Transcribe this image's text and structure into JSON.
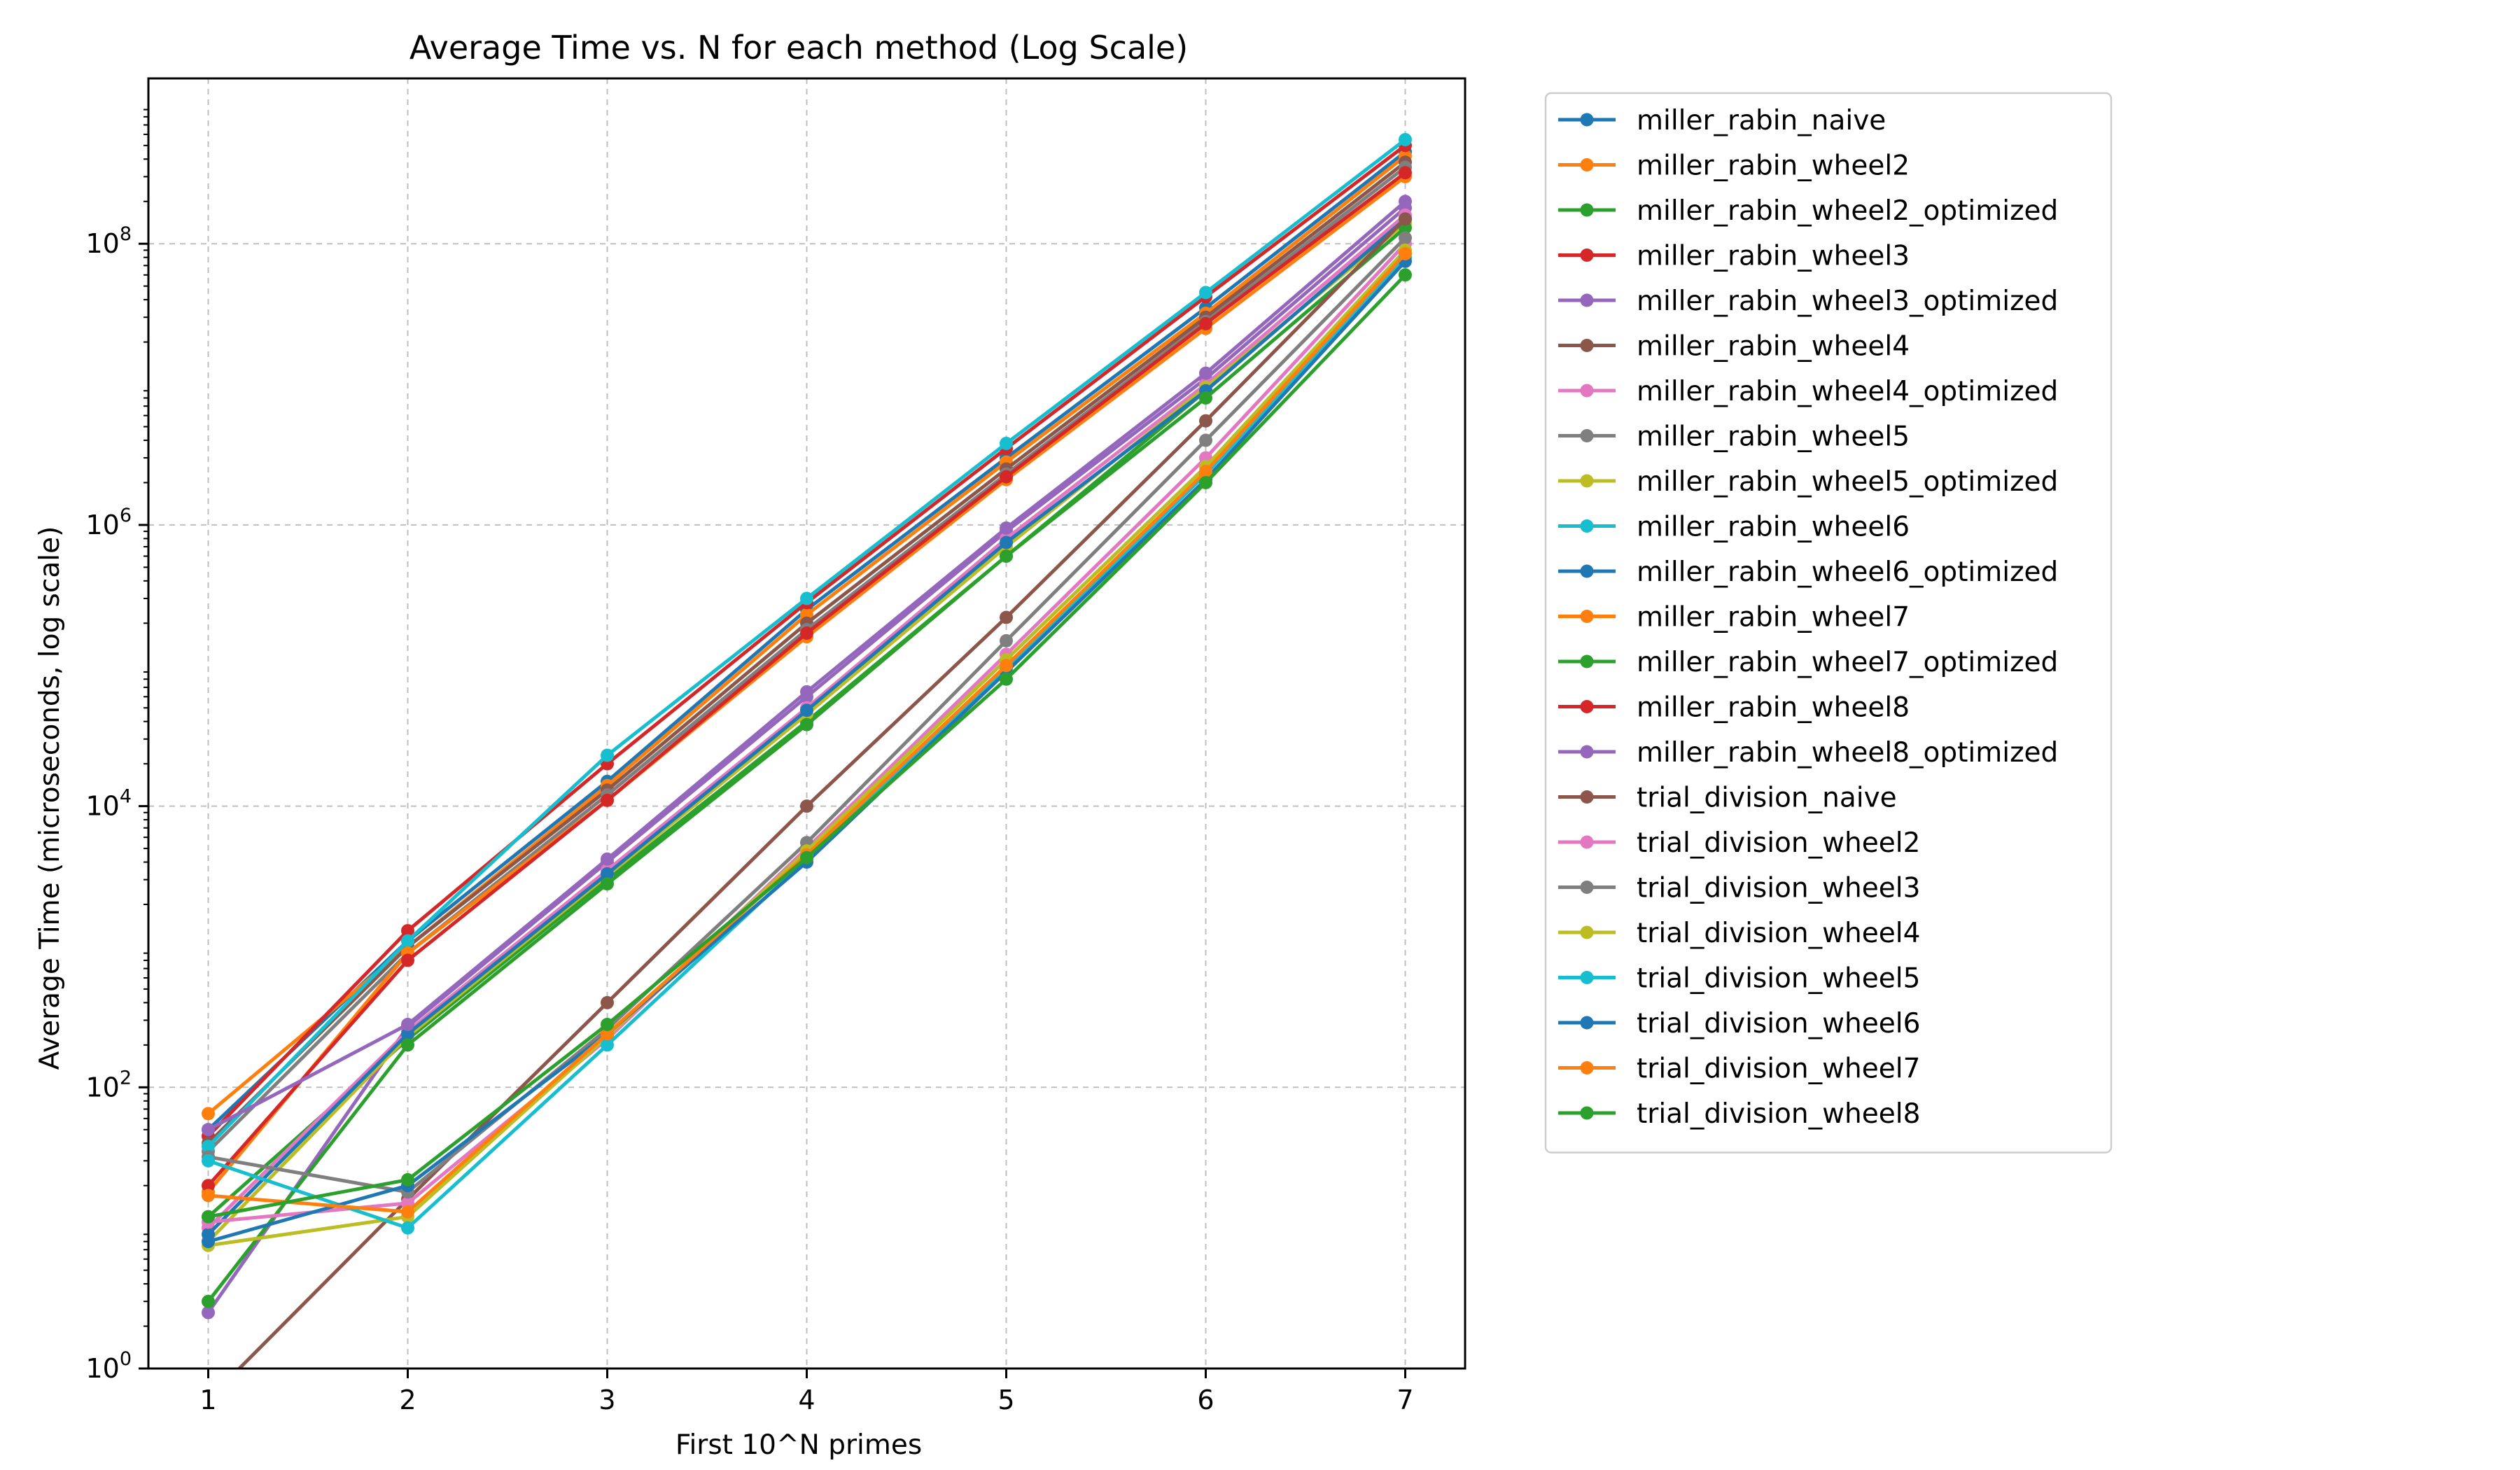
{
  "chart_data": {
    "type": "line",
    "title": "Average Time vs. N for each method (Log Scale)",
    "xlabel": "First 10^N primes",
    "ylabel": "Average Time (microseconds, log scale)",
    "yscale": "log",
    "x": [
      1,
      2,
      3,
      4,
      5,
      6,
      7
    ],
    "x_ticks": [
      "1",
      "2",
      "3",
      "4",
      "5",
      "6",
      "7"
    ],
    "xlim": [
      0.7,
      7.3
    ],
    "ylim": [
      1,
      1500000000
    ],
    "y_ticks": [
      {
        "value": 1,
        "base": "10",
        "exp": "0"
      },
      {
        "value": 100,
        "base": "10",
        "exp": "2"
      },
      {
        "value": 10000,
        "base": "10",
        "exp": "4"
      },
      {
        "value": 1000000,
        "base": "10",
        "exp": "6"
      },
      {
        "value": 100000000,
        "base": "10",
        "exp": "8"
      }
    ],
    "grid": true,
    "legend_position": "outside-right",
    "series": [
      {
        "name": "miller_rabin_naive",
        "color": "#1f77b4",
        "values": [
          50,
          1100,
          15000,
          250000,
          3000000,
          35000000,
          450000000
        ]
      },
      {
        "name": "miller_rabin_wheel2",
        "color": "#ff7f0e",
        "values": [
          65,
          1000,
          14000,
          230000,
          2800000,
          32000000,
          420000000
        ]
      },
      {
        "name": "miller_rabin_wheel2_optimized",
        "color": "#2ca02c",
        "values": [
          12,
          220,
          3000,
          40000,
          600000,
          9000000,
          150000000
        ]
      },
      {
        "name": "miller_rabin_wheel3",
        "color": "#d62728",
        "values": [
          45,
          1300,
          20000,
          280000,
          3500000,
          42000000,
          500000000
        ]
      },
      {
        "name": "miller_rabin_wheel3_optimized",
        "color": "#9467bd",
        "values": [
          2.5,
          270,
          4000,
          60000,
          900000,
          11000000,
          180000000
        ]
      },
      {
        "name": "miller_rabin_wheel4",
        "color": "#8c564b",
        "values": [
          40,
          1000,
          13000,
          200000,
          2500000,
          30000000,
          380000000
        ]
      },
      {
        "name": "miller_rabin_wheel4_optimized",
        "color": "#e377c2",
        "values": [
          10,
          250,
          3500,
          50000,
          800000,
          10000000,
          160000000
        ]
      },
      {
        "name": "miller_rabin_wheel5",
        "color": "#7f7f7f",
        "values": [
          35,
          900,
          12000,
          180000,
          2300000,
          28000000,
          350000000
        ]
      },
      {
        "name": "miller_rabin_wheel5_optimized",
        "color": "#bcbd22",
        "values": [
          8,
          230,
          3200,
          45000,
          700000,
          9500000,
          140000000
        ]
      },
      {
        "name": "miller_rabin_wheel6",
        "color": "#17becf",
        "values": [
          38,
          1100,
          23000,
          300000,
          3800000,
          45000000,
          550000000
        ]
      },
      {
        "name": "miller_rabin_wheel6_optimized",
        "color": "#1f77b4",
        "values": [
          9,
          240,
          3300,
          48000,
          750000,
          9000000,
          150000000
        ]
      },
      {
        "name": "miller_rabin_wheel7",
        "color": "#ff7f0e",
        "values": [
          18,
          900,
          11000,
          160000,
          2100000,
          25000000,
          300000000
        ]
      },
      {
        "name": "miller_rabin_wheel7_optimized",
        "color": "#2ca02c",
        "values": [
          3,
          200,
          2800,
          38000,
          600000,
          8000000,
          130000000
        ]
      },
      {
        "name": "miller_rabin_wheel8",
        "color": "#d62728",
        "values": [
          20,
          800,
          11000,
          170000,
          2200000,
          27000000,
          320000000
        ]
      },
      {
        "name": "miller_rabin_wheel8_optimized",
        "color": "#9467bd",
        "values": [
          50,
          280,
          4200,
          65000,
          950000,
          12000000,
          200000000
        ]
      },
      {
        "name": "trial_division_naive",
        "color": "#8c564b",
        "values": [
          0.6,
          16,
          400,
          10000,
          220000,
          5500000,
          150000000
        ]
      },
      {
        "name": "trial_division_wheel2",
        "color": "#e377c2",
        "values": [
          11,
          15,
          220,
          5000,
          120000,
          3000000,
          100000000
        ]
      },
      {
        "name": "trial_division_wheel3",
        "color": "#7f7f7f",
        "values": [
          32,
          18,
          260,
          5500,
          150000,
          4000000,
          110000000
        ]
      },
      {
        "name": "trial_division_wheel4",
        "color": "#bcbd22",
        "values": [
          7.5,
          12,
          230,
          4800,
          110000,
          2600000,
          90000000
        ]
      },
      {
        "name": "trial_division_wheel5",
        "color": "#17becf",
        "values": [
          30,
          10,
          200,
          4200,
          95000,
          2300000,
          80000000
        ]
      },
      {
        "name": "trial_division_wheel6",
        "color": "#1f77b4",
        "values": [
          8,
          20,
          240,
          4000,
          90000,
          2100000,
          75000000
        ]
      },
      {
        "name": "trial_division_wheel7",
        "color": "#ff7f0e",
        "values": [
          17,
          13,
          240,
          4500,
          100000,
          2400000,
          85000000
        ]
      },
      {
        "name": "trial_division_wheel8",
        "color": "#2ca02c",
        "values": [
          12,
          22,
          280,
          4300,
          80000,
          2000000,
          60000000
        ]
      }
    ]
  }
}
